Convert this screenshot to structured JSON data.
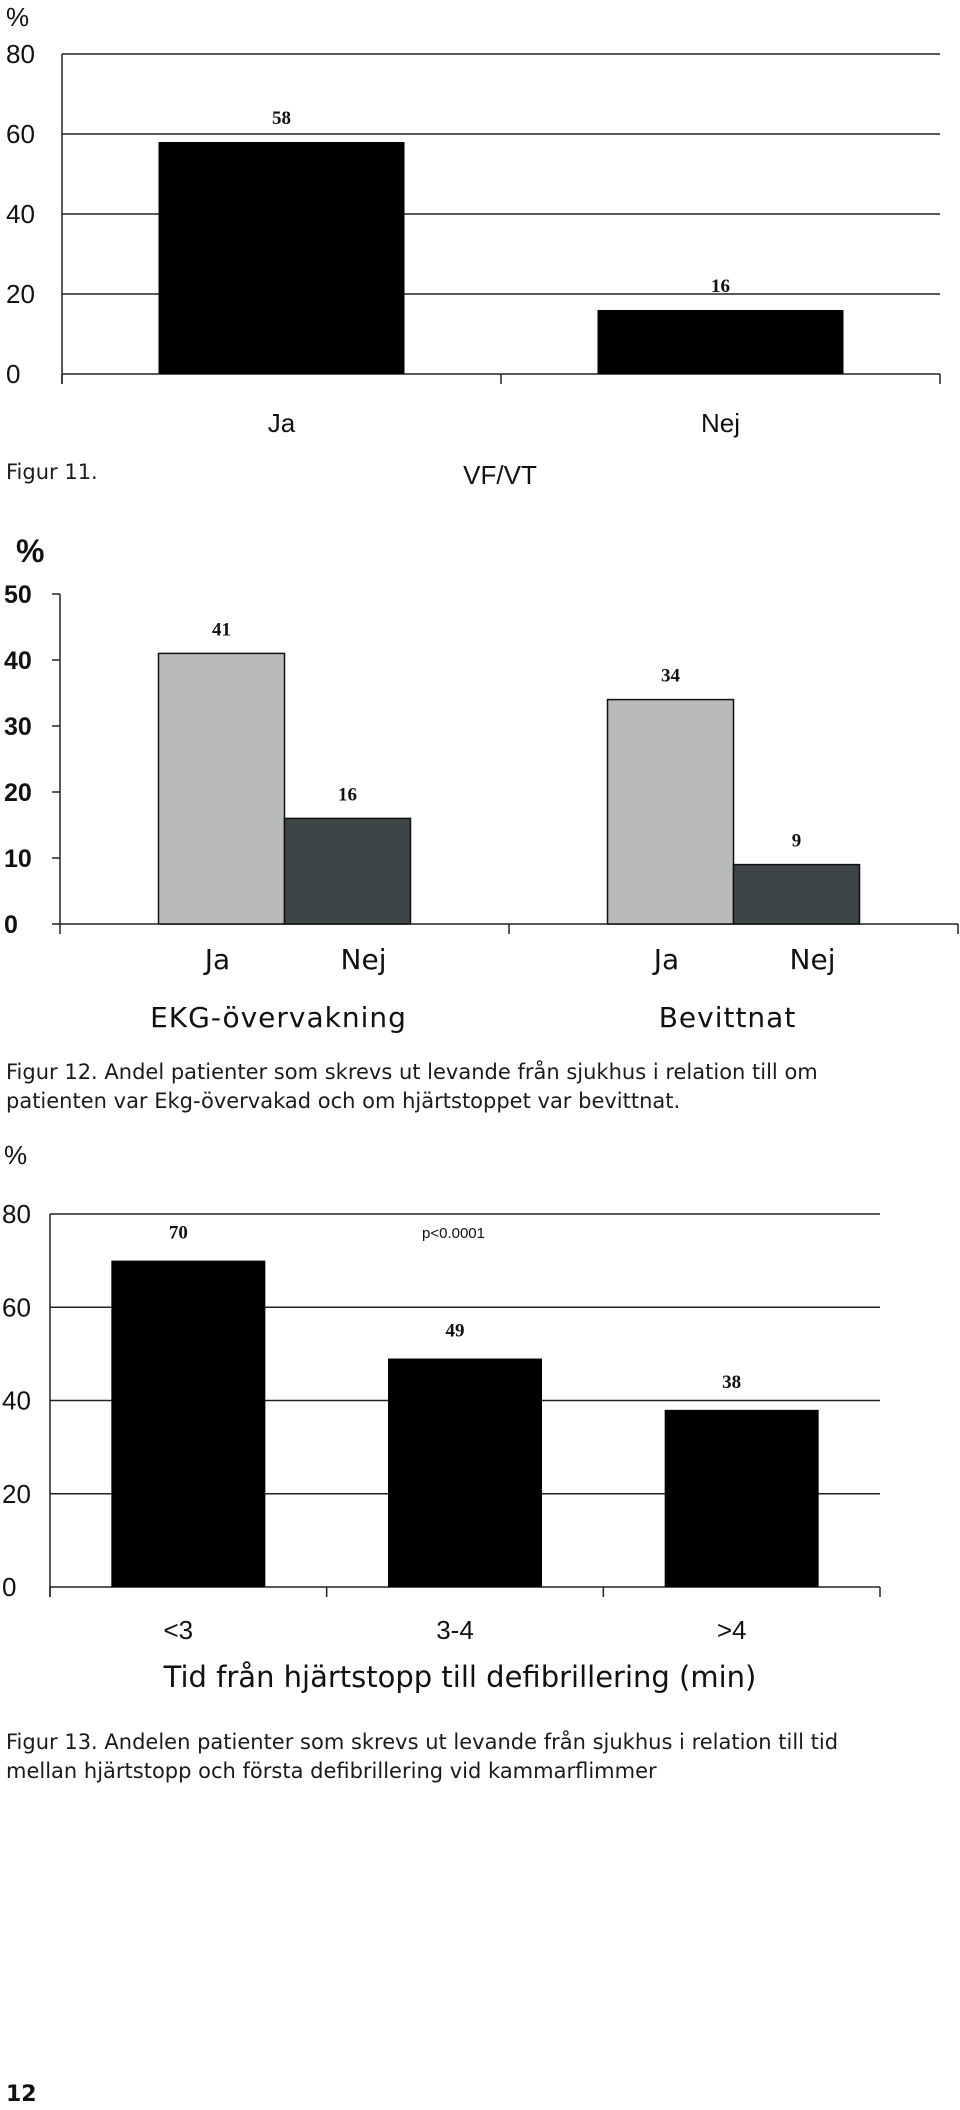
{
  "chart_data": [
    {
      "type": "bar",
      "ylabel": "%",
      "ylim": [
        0,
        80
      ],
      "yticks": [
        0,
        20,
        40,
        60,
        80
      ],
      "categories": [
        "Ja",
        "Nej"
      ],
      "values": [
        58,
        16
      ],
      "xlabel": "VF/VT",
      "color": "#000000",
      "grid": true
    },
    {
      "type": "bar",
      "ylabel": "%",
      "ylim": [
        0,
        50
      ],
      "yticks": [
        0,
        10,
        20,
        30,
        40,
        50
      ],
      "groups": [
        "EKG-övervakning",
        "Bevittnat"
      ],
      "group_categories": [
        [
          "Ja",
          "Nej"
        ],
        [
          "Ja",
          "Nej"
        ]
      ],
      "series": [
        {
          "values": [
            41,
            34
          ],
          "color": "#b8babc"
        },
        {
          "values": [
            16,
            9
          ],
          "color": "#3d4547"
        }
      ],
      "grid": false
    },
    {
      "type": "bar",
      "ylabel": "%",
      "ylim": [
        0,
        80
      ],
      "yticks": [
        0,
        20,
        40,
        60,
        80
      ],
      "categories": [
        "<3",
        "3-4",
        ">4"
      ],
      "values": [
        70,
        49,
        38
      ],
      "annotation": "p<0.0001",
      "xlabel": "Tid från hjärtstopp till defibrillering (min)",
      "color": "#000000",
      "grid": true
    }
  ],
  "captions": {
    "fig11": "Figur 11.",
    "fig12": "Figur 12. Andel patienter som skrevs ut levande från sjukhus i relation till om patienten var Ekg-övervakad och om hjärtstoppet var bevittnat.",
    "fig13": "Figur 13. Andelen patienter som skrevs ut levande från sjukhus i relation till tid mellan hjärtstopp och första defibrillering vid kammarflimmer"
  },
  "page_number": "12"
}
